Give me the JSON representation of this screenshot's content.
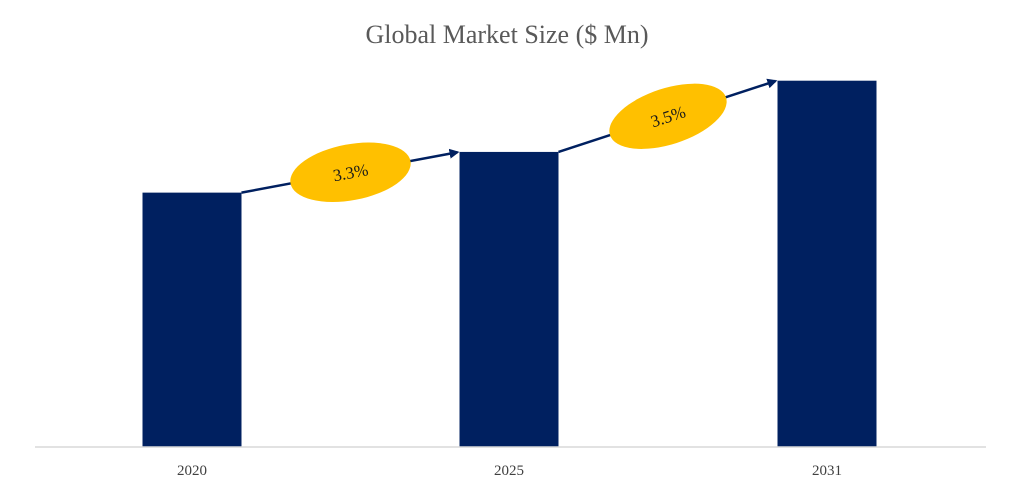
{
  "colors": {
    "bar": "#002060",
    "arrow": "#002060",
    "badge": "#FFC000",
    "axis": "#d9d9d9"
  },
  "chart_data": {
    "type": "bar",
    "title": "Global Market Size ($ Mn)",
    "xlabel": "",
    "ylabel": "",
    "categories": [
      "2020",
      "2025",
      "2031"
    ],
    "values": [
      250,
      290,
      360
    ],
    "ylim": [
      0,
      400
    ],
    "grid": false,
    "value_labels_shown": false,
    "annotations": [
      {
        "from": "2020",
        "to": "2025",
        "label": "3.3%"
      },
      {
        "from": "2025",
        "to": "2031",
        "label": "3.5%"
      }
    ]
  }
}
